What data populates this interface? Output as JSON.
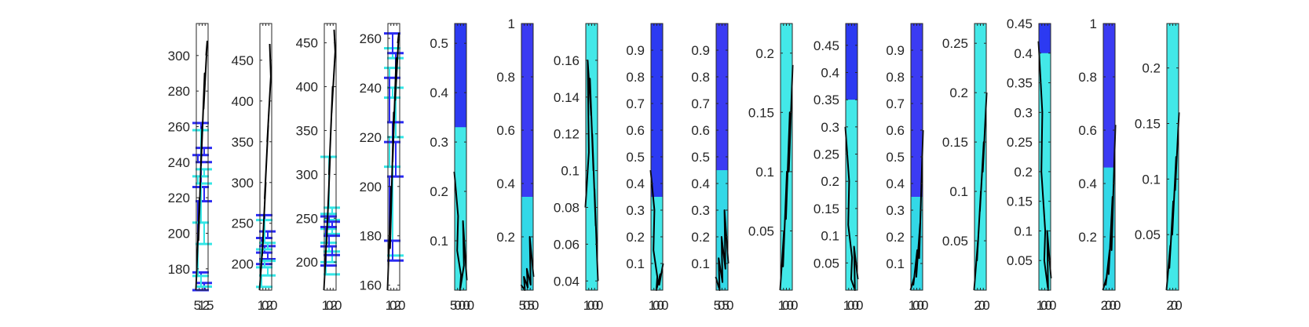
{
  "figure": {
    "background": "#ffffff",
    "axis_color": "#262626",
    "series_colors": [
      "#2a2af2",
      "#33e6e6",
      "#000000"
    ]
  },
  "chart_data": [
    {
      "type": "line",
      "yticks": [
        "180",
        "200",
        "220",
        "240",
        "260",
        "280",
        "300"
      ],
      "xtick_text": "5125",
      "ylim": [
        168,
        318
      ],
      "series": [
        {
          "kind": "hsteps",
          "color": "#2a2af2",
          "values": [
            262,
            248,
            244,
            240,
            226,
            218,
            178,
            172,
            168
          ]
        },
        {
          "kind": "hsteps",
          "color": "#33e6e6",
          "values": [
            258,
            236,
            232,
            228,
            206,
            194,
            176,
            170
          ]
        },
        {
          "kind": "zigzag",
          "color": "#000000",
          "values": [
            168,
            220,
            196,
            260,
            238,
            290,
            270,
            308,
            300
          ]
        }
      ]
    },
    {
      "type": "line",
      "yticks": [
        "200",
        "250",
        "300",
        "350",
        "400",
        "450"
      ],
      "xtick_text": "1020",
      "ylim": [
        168,
        495
      ],
      "series": [
        {
          "kind": "hsteps",
          "color": "#2a2af2",
          "values": [
            260,
            240,
            232,
            222,
            214,
            206,
            200
          ]
        },
        {
          "kind": "hsteps",
          "color": "#33e6e6",
          "values": [
            254,
            226,
            218,
            204,
            196,
            186,
            172
          ]
        },
        {
          "kind": "zigzag",
          "color": "#000000",
          "values": [
            168,
            230,
            210,
            300,
            280,
            370,
            350,
            430,
            470
          ]
        }
      ]
    },
    {
      "type": "line",
      "yticks": [
        "200",
        "250",
        "300",
        "350",
        "400",
        "450"
      ],
      "xtick_text": "1020",
      "ylim": [
        168,
        472
      ],
      "series": [
        {
          "kind": "hsteps",
          "color": "#33e6e6",
          "values": [
            320,
            262,
            255,
            248,
            238,
            232,
            222,
            212,
            200,
            186
          ]
        },
        {
          "kind": "hsteps",
          "color": "#2a2af2",
          "values": [
            252,
            246,
            240,
            230,
            218,
            208,
            196
          ]
        },
        {
          "kind": "zigzag",
          "color": "#000000",
          "values": [
            168,
            250,
            220,
            320,
            300,
            400,
            370,
            440,
            465
          ]
        }
      ]
    },
    {
      "type": "line",
      "yticks": [
        "160",
        "180",
        "200",
        "220",
        "240",
        "260"
      ],
      "xtick_text": "1020",
      "ylim": [
        158,
        266
      ],
      "series": [
        {
          "kind": "hsteps",
          "color": "#33e6e6",
          "values": [
            256,
            252,
            248,
            240,
            236,
            220,
            208,
            172
          ]
        },
        {
          "kind": "hsteps",
          "color": "#2a2af2",
          "values": [
            262,
            254,
            244,
            226,
            218,
            204,
            178,
            170
          ]
        },
        {
          "kind": "zigzag",
          "color": "#000000",
          "values": [
            158,
            200,
            175,
            230,
            210,
            252,
            235,
            262,
            258
          ]
        }
      ]
    },
    {
      "type": "line",
      "yticks": [
        "0.1",
        "0.2",
        "0.3",
        "0.4",
        "0.5"
      ],
      "xtick_text": "50000",
      "ylim": [
        0,
        0.54
      ],
      "series": [
        {
          "kind": "band",
          "color": "#33e6e6",
          "values": [
            0,
            0.54
          ]
        },
        {
          "kind": "band",
          "color": "#2a2af2",
          "values": [
            0.33,
            0.54
          ]
        },
        {
          "kind": "decay",
          "color": "#000000",
          "values": [
            0.24,
            0.15,
            0.08,
            0.03,
            0.0,
            0.05,
            0.14,
            0.02
          ]
        }
      ]
    },
    {
      "type": "line",
      "yticks": [
        "0.2",
        "0.4",
        "0.6",
        "0.8",
        "1"
      ],
      "xtick_text": "5050",
      "ylim": [
        0,
        1.0
      ],
      "series": [
        {
          "kind": "band",
          "color": "#2a2af2",
          "values": [
            0,
            1.0
          ]
        },
        {
          "kind": "band",
          "color": "#33e6e6",
          "values": [
            0,
            0.35
          ]
        },
        {
          "kind": "decay",
          "color": "#000000",
          "values": [
            0.02,
            0.0,
            0.05,
            0.01,
            0.08,
            0.02,
            0.2,
            0.05
          ]
        }
      ]
    },
    {
      "type": "line",
      "yticks": [
        "0.04",
        "0.06",
        "0.08",
        "0.1",
        "0.12",
        "0.14",
        "0.16"
      ],
      "xtick_text": "1000",
      "ylim": [
        0.035,
        0.18
      ],
      "series": [
        {
          "kind": "band",
          "color": "#33e6e6",
          "values": [
            0.035,
            0.18
          ]
        },
        {
          "kind": "decay",
          "color": "#000000",
          "values": [
            0.08,
            0.11,
            0.16,
            0.13,
            0.15,
            0.1,
            0.12,
            0.07,
            0.09,
            0.04
          ]
        }
      ]
    },
    {
      "type": "line",
      "yticks": [
        "0.1",
        "0.2",
        "0.3",
        "0.4",
        "0.5",
        "0.6",
        "0.7",
        "0.8",
        "0.9"
      ],
      "xtick_text": "1000",
      "ylim": [
        0,
        1.0
      ],
      "series": [
        {
          "kind": "band",
          "color": "#33e6e6",
          "values": [
            0,
            1.0
          ]
        },
        {
          "kind": "band",
          "color": "#2a2af2",
          "values": [
            0.35,
            1.0
          ]
        },
        {
          "kind": "decay",
          "color": "#000000",
          "values": [
            0.45,
            0.3,
            0.15,
            0.05,
            0.0,
            0.06,
            0.02,
            0.1
          ]
        }
      ]
    },
    {
      "type": "line",
      "yticks": [
        "0.1",
        "0.2",
        "0.3",
        "0.4",
        "0.5",
        "0.6",
        "0.7",
        "0.8",
        "0.9"
      ],
      "xtick_text": "5050",
      "ylim": [
        0,
        1.0
      ],
      "series": [
        {
          "kind": "band",
          "color": "#2a2af2",
          "values": [
            0,
            1.0
          ]
        },
        {
          "kind": "band",
          "color": "#33e6e6",
          "values": [
            0,
            0.45
          ]
        },
        {
          "kind": "decay",
          "color": "#000000",
          "values": [
            0.05,
            0.0,
            0.12,
            0.03,
            0.2,
            0.08,
            0.3,
            0.1
          ]
        }
      ]
    },
    {
      "type": "line",
      "yticks": [
        "0.05",
        "0.1",
        "0.15",
        "0.2"
      ],
      "xtick_text": "1000",
      "ylim": [
        0,
        0.225
      ],
      "series": [
        {
          "kind": "band",
          "color": "#33e6e6",
          "values": [
            0,
            0.225
          ]
        },
        {
          "kind": "decay",
          "color": "#000000",
          "values": [
            0.0,
            0.05,
            0.02,
            0.1,
            0.06,
            0.15,
            0.1,
            0.19
          ]
        }
      ]
    },
    {
      "type": "line",
      "yticks": [
        "0.05",
        "0.1",
        "0.15",
        "0.2",
        "0.25",
        "0.3",
        "0.35",
        "0.4",
        "0.45"
      ],
      "xtick_text": "1000",
      "ylim": [
        0,
        0.49
      ],
      "series": [
        {
          "kind": "band",
          "color": "#33e6e6",
          "values": [
            0,
            0.49
          ]
        },
        {
          "kind": "band",
          "color": "#2a2af2",
          "values": [
            0.35,
            0.49
          ]
        },
        {
          "kind": "decay",
          "color": "#000000",
          "values": [
            0.3,
            0.2,
            0.12,
            0.06,
            0.02,
            0.0,
            0.08,
            0.02
          ]
        }
      ]
    },
    {
      "type": "line",
      "yticks": [
        "0.1",
        "0.2",
        "0.3",
        "0.4",
        "0.5",
        "0.6",
        "0.7",
        "0.8",
        "0.9"
      ],
      "xtick_text": "1000",
      "ylim": [
        0,
        1.0
      ],
      "series": [
        {
          "kind": "band",
          "color": "#2a2af2",
          "values": [
            0,
            1.0
          ]
        },
        {
          "kind": "band",
          "color": "#33e6e6",
          "values": [
            0,
            0.35
          ]
        },
        {
          "kind": "decay",
          "color": "#000000",
          "values": [
            0.0,
            0.05,
            0.02,
            0.15,
            0.05,
            0.25,
            0.12,
            0.6
          ]
        }
      ]
    },
    {
      "type": "line",
      "yticks": [
        "0.05",
        "0.1",
        "0.15",
        "0.2",
        "0.25"
      ],
      "xtick_text": "200",
      "ylim": [
        0,
        0.27
      ],
      "series": [
        {
          "kind": "band",
          "color": "#33e6e6",
          "values": [
            0,
            0.27
          ]
        },
        {
          "kind": "decay",
          "color": "#000000",
          "values": [
            0.0,
            0.05,
            0.03,
            0.1,
            0.08,
            0.15,
            0.12,
            0.2
          ]
        }
      ]
    },
    {
      "type": "line",
      "yticks": [
        "0.05",
        "0.1",
        "0.15",
        "0.2",
        "0.25",
        "0.3",
        "0.35",
        "0.4",
        "0.45"
      ],
      "xtick_text": "1000",
      "ylim": [
        0,
        0.45
      ],
      "series": [
        {
          "kind": "band",
          "color": "#33e6e6",
          "values": [
            0,
            0.45
          ]
        },
        {
          "kind": "band",
          "color": "#2a2af2",
          "values": [
            0.4,
            0.45
          ]
        },
        {
          "kind": "decay",
          "color": "#000000",
          "values": [
            0.42,
            0.3,
            0.2,
            0.1,
            0.05,
            0.0,
            0.1,
            0.02
          ]
        }
      ]
    },
    {
      "type": "line",
      "yticks": [
        "0.2",
        "0.4",
        "0.6",
        "0.8",
        "1"
      ],
      "xtick_text": "2000",
      "ylim": [
        0,
        1.0
      ],
      "series": [
        {
          "kind": "band",
          "color": "#2a2af2",
          "values": [
            0,
            1.0
          ]
        },
        {
          "kind": "band",
          "color": "#33e6e6",
          "values": [
            0,
            0.46
          ]
        },
        {
          "kind": "decay",
          "color": "#000000",
          "values": [
            0.0,
            0.05,
            0.02,
            0.15,
            0.06,
            0.35,
            0.15,
            0.62
          ]
        }
      ]
    },
    {
      "type": "line",
      "yticks": [
        "0.05",
        "0.1",
        "0.15",
        "0.2"
      ],
      "xtick_text": "200",
      "ylim": [
        0,
        0.24
      ],
      "series": [
        {
          "kind": "band",
          "color": "#33e6e6",
          "values": [
            0,
            0.24
          ]
        },
        {
          "kind": "decay",
          "color": "#000000",
          "values": [
            0.0,
            0.04,
            0.02,
            0.08,
            0.05,
            0.12,
            0.09,
            0.16
          ]
        }
      ]
    }
  ]
}
